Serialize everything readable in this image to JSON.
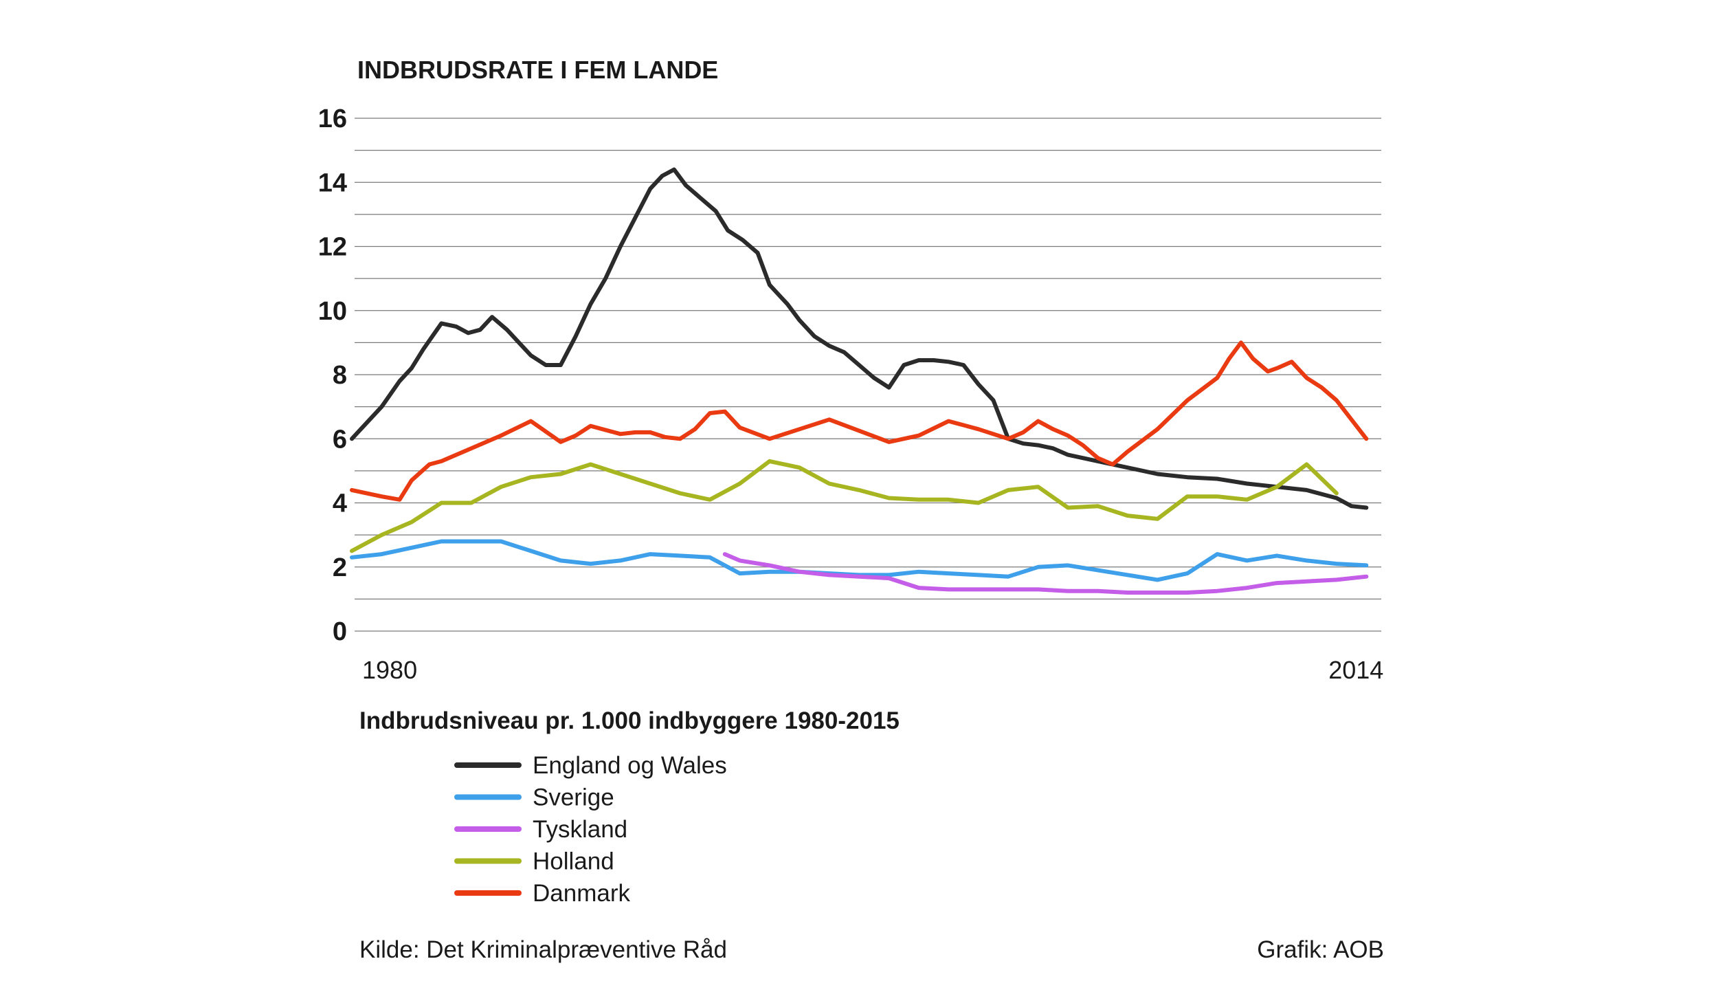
{
  "chart_data": {
    "type": "line",
    "title": "INDBRUDSRATE I FEM LANDE",
    "subtitle": "Indbrudsniveau pr. 1.000 indbyggere 1980-2015",
    "xlim": [
      1980,
      2014.5
    ],
    "ylim": [
      0,
      16
    ],
    "yticks": [
      0,
      2,
      4,
      6,
      8,
      10,
      12,
      14,
      16
    ],
    "y_minor_step": 1,
    "xtick_labels": [
      {
        "value": 1980,
        "label": "1980"
      },
      {
        "value": 2014,
        "label": "2014"
      }
    ],
    "grid": true,
    "legend_position": "bottom-left",
    "series": [
      {
        "name": "England og Wales",
        "color": "#2b2b2b",
        "x": [
          1980,
          1980.5,
          1981,
          1981.6,
          1982,
          1982.4,
          1983,
          1983.5,
          1983.9,
          1984.3,
          1984.7,
          1985.2,
          1985.6,
          1986,
          1986.5,
          1987,
          1987.5,
          1988,
          1988.5,
          1989,
          1989.5,
          1990,
          1990.4,
          1990.8,
          1991.2,
          1991.7,
          1992.2,
          1992.6,
          1993.1,
          1993.6,
          1994,
          1994.6,
          1995,
          1995.5,
          1996,
          1996.5,
          1997,
          1997.5,
          1998,
          1998.5,
          1999,
          1999.5,
          2000,
          2000.5,
          2001,
          2001.5,
          2002,
          2002.5,
          2003,
          2003.5,
          2004,
          2005,
          2006,
          2007,
          2008,
          2009,
          2010,
          2011,
          2012,
          2013,
          2013.5,
          2014
        ],
        "values": [
          6.0,
          6.5,
          7.0,
          7.8,
          8.2,
          8.8,
          9.6,
          9.5,
          9.3,
          9.4,
          9.8,
          9.4,
          9.0,
          8.6,
          8.3,
          8.3,
          9.2,
          10.2,
          11.0,
          12.0,
          12.9,
          13.8,
          14.2,
          14.4,
          13.9,
          13.5,
          13.1,
          12.5,
          12.2,
          11.8,
          10.8,
          10.2,
          9.7,
          9.2,
          8.9,
          8.7,
          8.3,
          7.9,
          7.6,
          8.3,
          8.45,
          8.45,
          8.4,
          8.3,
          7.7,
          7.2,
          6.0,
          5.85,
          5.8,
          5.7,
          5.5,
          5.3,
          5.1,
          4.9,
          4.8,
          4.75,
          4.6,
          4.5,
          4.4,
          4.15,
          3.9,
          3.85
        ]
      },
      {
        "name": "Sverige",
        "color": "#3ea0ea",
        "x": [
          1980,
          1981,
          1982,
          1983,
          1984,
          1985,
          1986,
          1987,
          1988,
          1989,
          1990,
          1991,
          1992,
          1993,
          1994,
          1995,
          1996,
          1997,
          1998,
          1999,
          2000,
          2001,
          2002,
          2003,
          2004,
          2005,
          2006,
          2007,
          2008,
          2009,
          2010,
          2011,
          2012,
          2013,
          2014
        ],
        "values": [
          2.3,
          2.4,
          2.6,
          2.8,
          2.8,
          2.8,
          2.5,
          2.2,
          2.1,
          2.2,
          2.4,
          2.35,
          2.3,
          1.8,
          1.85,
          1.85,
          1.8,
          1.75,
          1.75,
          1.85,
          1.8,
          1.75,
          1.7,
          2.0,
          2.05,
          1.9,
          1.75,
          1.6,
          1.8,
          2.4,
          2.2,
          2.35,
          2.2,
          2.1,
          2.05
        ]
      },
      {
        "name": "Tyskland",
        "color": "#c45ee8",
        "x": [
          1992.5,
          1993,
          1994,
          1995,
          1996,
          1997,
          1998,
          1999,
          2000,
          2001,
          2002,
          2003,
          2004,
          2005,
          2006,
          2007,
          2008,
          2009,
          2010,
          2011,
          2012,
          2013,
          2014
        ],
        "values": [
          2.4,
          2.2,
          2.05,
          1.85,
          1.75,
          1.7,
          1.65,
          1.35,
          1.3,
          1.3,
          1.3,
          1.3,
          1.25,
          1.25,
          1.2,
          1.2,
          1.2,
          1.25,
          1.35,
          1.5,
          1.55,
          1.6,
          1.7
        ]
      },
      {
        "name": "Holland",
        "color": "#a6b520",
        "x": [
          1980,
          1981,
          1982,
          1983,
          1984,
          1985,
          1986,
          1987,
          1988,
          1989,
          1990,
          1991,
          1992,
          1993,
          1994,
          1995,
          1996,
          1997,
          1998,
          1999,
          2000,
          2001,
          2002,
          2003,
          2004,
          2005,
          2006,
          2007,
          2008,
          2009,
          2010,
          2011,
          2012,
          2013
        ],
        "values": [
          2.5,
          3.0,
          3.4,
          4.0,
          4.0,
          4.5,
          4.8,
          4.9,
          5.2,
          4.9,
          4.6,
          4.3,
          4.1,
          4.6,
          5.3,
          5.1,
          4.6,
          4.4,
          4.15,
          4.1,
          4.1,
          4.0,
          4.4,
          4.5,
          3.85,
          3.9,
          3.6,
          3.5,
          4.2,
          4.2,
          4.1,
          4.5,
          5.2,
          4.3
        ]
      },
      {
        "name": "Danmark",
        "color": "#ea3a12",
        "x": [
          1980,
          1981,
          1981.6,
          1982,
          1982.6,
          1983,
          1984,
          1985,
          1986,
          1987,
          1987.5,
          1988,
          1989,
          1989.5,
          1990,
          1990.5,
          1991,
          1991.5,
          1992,
          1992.5,
          1993,
          1994,
          1995,
          1996,
          1997,
          1998,
          1999,
          2000,
          2001,
          2002,
          2002.5,
          2003,
          2003.5,
          2004,
          2004.5,
          2005,
          2005.5,
          2006,
          2007,
          2008,
          2009,
          2009.4,
          2009.8,
          2010.2,
          2010.7,
          2011,
          2011.5,
          2012,
          2012.5,
          2013,
          2013.5,
          2014
        ],
        "values": [
          4.4,
          4.2,
          4.1,
          4.7,
          5.2,
          5.3,
          5.7,
          6.1,
          6.55,
          5.9,
          6.1,
          6.4,
          6.15,
          6.2,
          6.2,
          6.05,
          6.0,
          6.3,
          6.8,
          6.85,
          6.35,
          6.0,
          6.3,
          6.6,
          6.25,
          5.9,
          6.1,
          6.55,
          6.3,
          6.0,
          6.2,
          6.55,
          6.3,
          6.1,
          5.8,
          5.4,
          5.2,
          5.6,
          6.3,
          7.2,
          7.9,
          8.5,
          9.0,
          8.5,
          8.1,
          8.2,
          8.4,
          7.9,
          7.6,
          7.2,
          6.6,
          6.0
        ]
      }
    ]
  },
  "legend_title": "Indbrudsniveau pr. 1.000 indbyggere 1980-2015",
  "footer": {
    "source": "Kilde: Det Kriminalpræventive Råd",
    "credit": "Grafik: AOB"
  }
}
